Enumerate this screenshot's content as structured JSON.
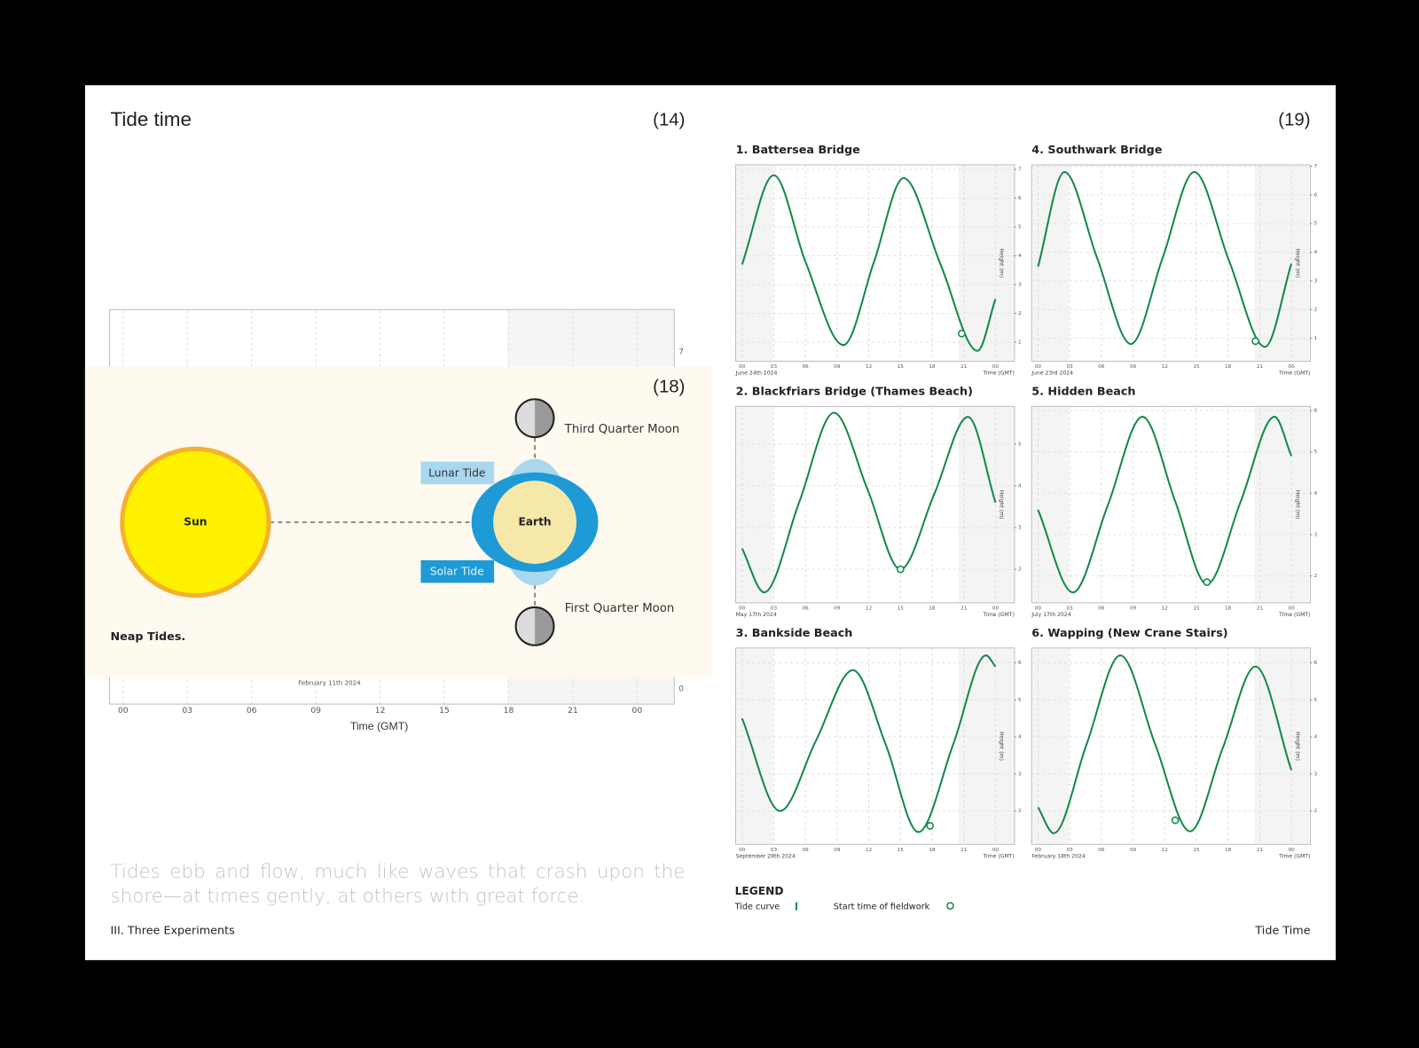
{
  "left": {
    "title": "Tide time",
    "page_number": "(14)",
    "background_chart": {
      "xticks": [
        "00",
        "03",
        "06",
        "09",
        "12",
        "15",
        "18",
        "21",
        "00"
      ],
      "yticks": [
        "7",
        "0"
      ],
      "date": "February 11th 2024",
      "x_label": "Time (GMT)"
    },
    "diagram": {
      "page_number": "(18)",
      "sun": "Sun",
      "earth": "Earth",
      "lunar_tide": "Lunar Tide",
      "solar_tide": "Solar Tide",
      "third_quarter_moon": "Third Quarter Moon",
      "first_quarter_moon": "First Quarter Moon",
      "caption": "Neap Tides."
    },
    "quote": "Tides ebb and flow, much like waves that crash upon the shore—at times gently, at others with great force.",
    "footer": "III. Three Experiments"
  },
  "right": {
    "page_number": "(19)",
    "legend": {
      "title": "LEGEND",
      "tide_curve": "Tide curve",
      "fieldwork": "Start time of fieldwork",
      "color": "#13894a"
    },
    "footer": "Tide Time"
  },
  "chart_data": [
    {
      "type": "line",
      "title": "1. Battersea Bridge",
      "date": "June 24th 2024",
      "x_label": "Time (GMT)",
      "y_label": "Height (m)",
      "color": "#13894a",
      "x": [
        0,
        3,
        6,
        9.6,
        12.5,
        15.3,
        18.8,
        22.3,
        24
      ],
      "values": [
        3.7,
        6.8,
        3.8,
        0.9,
        3.8,
        6.7,
        3.7,
        0.7,
        2.5
      ],
      "fieldwork_start": {
        "x": 20.8,
        "y": 1.3
      },
      "xlim": [
        -0.6,
        25.8
      ],
      "ylim": [
        0.34,
        7.16
      ],
      "xticks": [
        {
          "value": 0,
          "label": "00"
        },
        {
          "value": 3,
          "label": "03"
        },
        {
          "value": 6,
          "label": "06"
        },
        {
          "value": 9,
          "label": "09"
        },
        12,
        15,
        18,
        21,
        {
          "value": 24,
          "label": "00"
        }
      ],
      "yticks": [
        1,
        2,
        3,
        4,
        5,
        6,
        7
      ],
      "grid": true
    },
    {
      "type": "line",
      "title": "2. Blackfriars Bridge (Thames Beach)",
      "date": "May 17th 2024",
      "x_label": "Time (GMT)",
      "y_label": "Height (m)",
      "color": "#13894a",
      "x": [
        0,
        2.1,
        5.4,
        8.7,
        11.9,
        15,
        18.2,
        21.4,
        24
      ],
      "values": [
        2.5,
        1.45,
        3.6,
        5.75,
        3.9,
        2.0,
        3.8,
        5.65,
        3.6
      ],
      "fieldwork_start": {
        "x": 15,
        "y": 2.0
      },
      "xlim": [
        -0.6,
        25.8
      ],
      "ylim": [
        1.2,
        5.9
      ],
      "xticks": [
        {
          "value": 0,
          "label": "00"
        },
        {
          "value": 3,
          "label": "03"
        },
        {
          "value": 6,
          "label": "06"
        },
        {
          "value": 9,
          "label": "09"
        },
        12,
        15,
        18,
        21,
        {
          "value": 24,
          "label": "00"
        }
      ],
      "yticks": [
        2,
        3,
        4,
        5
      ],
      "grid": true
    },
    {
      "type": "line",
      "title": "3. Bankside Beach",
      "date": "September 28th 2024",
      "x_label": "Time (GMT)",
      "y_label": "Height (m)",
      "color": "#13894a",
      "x": [
        0,
        3.6,
        7,
        10.5,
        13.6,
        16.7,
        20,
        23.1,
        24
      ],
      "values": [
        4.5,
        2.0,
        3.9,
        5.8,
        3.8,
        1.43,
        3.8,
        6.2,
        5.9
      ],
      "fieldwork_start": {
        "x": 17.8,
        "y": 1.6
      },
      "xlim": [
        -0.6,
        25.8
      ],
      "ylim": [
        1.1,
        6.4
      ],
      "xticks": [
        {
          "value": 0,
          "label": "00"
        },
        {
          "value": 3,
          "label": "03"
        },
        {
          "value": 6,
          "label": "06"
        },
        {
          "value": 9,
          "label": "09"
        },
        12,
        15,
        18,
        21,
        {
          "value": 24,
          "label": "00"
        }
      ],
      "yticks": [
        2,
        3,
        4,
        5,
        6
      ],
      "grid": true
    },
    {
      "type": "line",
      "title": "4. Southwark Bridge",
      "date": "June 23rd 2024",
      "x_label": "Time (GMT)",
      "y_label": "Height (m)",
      "color": "#13894a",
      "x": [
        0,
        2.5,
        5.6,
        8.8,
        11.8,
        14.8,
        18.1,
        21.5,
        24
      ],
      "values": [
        3.5,
        6.8,
        3.8,
        0.8,
        3.8,
        6.8,
        3.7,
        0.7,
        3.6
      ],
      "fieldwork_start": {
        "x": 20.6,
        "y": 0.9
      },
      "xlim": [
        -0.6,
        25.8
      ],
      "ylim": [
        0.2,
        7.05
      ],
      "xticks": [
        {
          "value": 0,
          "label": "00"
        },
        {
          "value": 3,
          "label": "03"
        },
        {
          "value": 6,
          "label": "06"
        },
        {
          "value": 9,
          "label": "09"
        },
        12,
        15,
        18,
        21,
        {
          "value": 24,
          "label": "00"
        }
      ],
      "yticks": [
        1,
        2,
        3,
        4,
        5,
        6,
        7
      ],
      "grid": true
    },
    {
      "type": "line",
      "title": "5. Hidden Beach",
      "date": "July 17th 2024",
      "x_label": "Time (GMT)",
      "y_label": "Height (m)",
      "color": "#13894a",
      "x": [
        0,
        3.3,
        6.6,
        9.9,
        13,
        16,
        19.2,
        22.4,
        24
      ],
      "values": [
        3.6,
        1.6,
        3.7,
        5.85,
        3.8,
        1.8,
        3.8,
        5.85,
        4.9
      ],
      "fieldwork_start": {
        "x": 16,
        "y": 1.85
      },
      "xlim": [
        -0.6,
        25.8
      ],
      "ylim": [
        1.35,
        6.1
      ],
      "xticks": [
        {
          "value": 0,
          "label": "00"
        },
        {
          "value": 3,
          "label": "03"
        },
        {
          "value": 6,
          "label": "06"
        },
        {
          "value": 9,
          "label": "09"
        },
        12,
        15,
        18,
        21,
        {
          "value": 24,
          "label": "00"
        }
      ],
      "yticks": [
        2,
        3,
        4,
        5,
        6
      ],
      "grid": true
    },
    {
      "type": "line",
      "title": "6. Wapping (New Crane Stairs)",
      "date": "February 18th 2024",
      "x_label": "Time (GMT)",
      "y_label": "Height (m)",
      "color": "#13894a",
      "x": [
        0,
        1.5,
        4.6,
        7.8,
        11.1,
        14.4,
        17.5,
        20.6,
        24
      ],
      "values": [
        2.1,
        1.4,
        3.8,
        6.2,
        3.8,
        1.45,
        3.7,
        5.9,
        3.1
      ],
      "fieldwork_start": {
        "x": 13,
        "y": 1.75
      },
      "xlim": [
        -0.6,
        25.8
      ],
      "ylim": [
        1.1,
        6.4
      ],
      "xticks": [
        {
          "value": 0,
          "label": "00"
        },
        {
          "value": 3,
          "label": "03"
        },
        {
          "value": 6,
          "label": "06"
        },
        {
          "value": 9,
          "label": "09"
        },
        12,
        15,
        18,
        21,
        {
          "value": 24,
          "label": "00"
        }
      ],
      "yticks": [
        2,
        3,
        4,
        5,
        6
      ],
      "grid": true
    }
  ]
}
